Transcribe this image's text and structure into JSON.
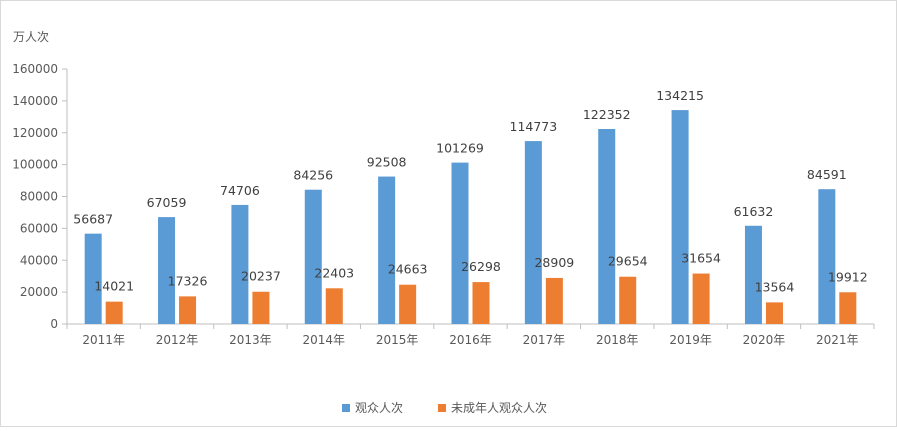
{
  "chart_data": {
    "type": "bar",
    "unit_label": "万人次",
    "categories": [
      "2011年",
      "2012年",
      "2013年",
      "2014年",
      "2015年",
      "2016年",
      "2017年",
      "2018年",
      "2019年",
      "2020年",
      "2021年"
    ],
    "series": [
      {
        "name": "观众人次",
        "color": "#5B9BD5",
        "values": [
          56687,
          67059,
          74706,
          84256,
          92508,
          101269,
          114773,
          122352,
          134215,
          61632,
          84591
        ]
      },
      {
        "name": "未成年人观众人次",
        "color": "#ED7D31",
        "values": [
          14021,
          17326,
          20237,
          22403,
          24663,
          26298,
          28909,
          29654,
          31654,
          13564,
          19912
        ]
      }
    ],
    "ylim": [
      0,
      160000
    ],
    "yticks": [
      0,
      20000,
      40000,
      60000,
      80000,
      100000,
      120000,
      140000,
      160000
    ],
    "grid": false,
    "data_labels": true,
    "legend_position": "bottom"
  }
}
